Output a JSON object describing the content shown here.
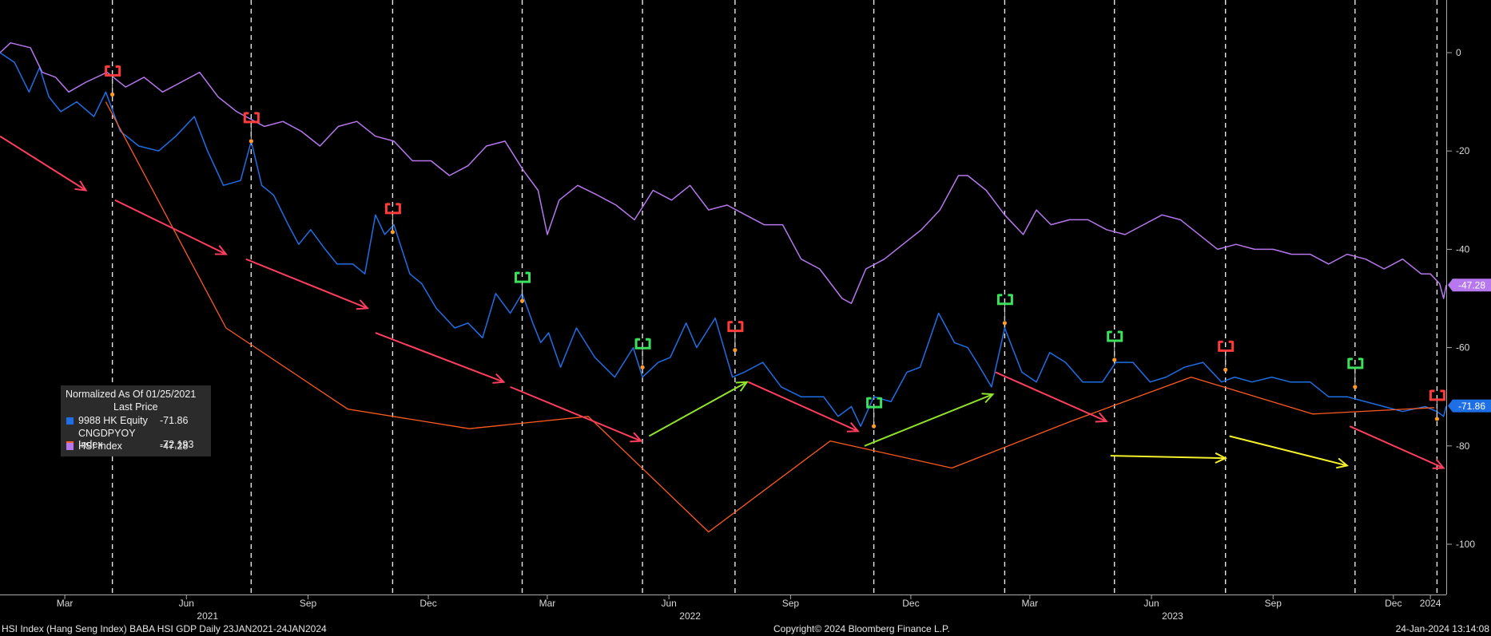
{
  "chart_data": {
    "type": "line",
    "title": "",
    "xlabel": "",
    "ylabel": "",
    "legend_title": "Normalized As Of 01/25/2021",
    "legend_subtitle": "Last Price",
    "x_range": [
      "2021-01-25",
      "2024-01-24"
    ],
    "ylim": [
      -110,
      10
    ],
    "y_ticks": [
      0,
      -20,
      -40,
      -60,
      -80,
      -100
    ],
    "grid": false,
    "legend_position": "left",
    "month_ticks": [
      {
        "label": "Mar",
        "date": "2021-03-15"
      },
      {
        "label": "Jun",
        "date": "2021-06-15"
      },
      {
        "label": "Sep",
        "date": "2021-09-15"
      },
      {
        "label": "Dec",
        "date": "2021-12-15"
      },
      {
        "label": "Mar",
        "date": "2022-03-15"
      },
      {
        "label": "Jun",
        "date": "2022-06-15"
      },
      {
        "label": "Sep",
        "date": "2022-09-15"
      },
      {
        "label": "Dec",
        "date": "2022-12-15"
      },
      {
        "label": "Mar",
        "date": "2023-03-15"
      },
      {
        "label": "Jun",
        "date": "2023-06-15"
      },
      {
        "label": "Sep",
        "date": "2023-09-15"
      },
      {
        "label": "Dec",
        "date": "2023-12-15"
      },
      {
        "label": "2024",
        "date": "2024-01-12"
      }
    ],
    "year_labels": [
      {
        "label": "2021",
        "date": "2021-07-01"
      },
      {
        "label": "2022",
        "date": "2022-07-01"
      },
      {
        "label": "2023",
        "date": "2023-07-01"
      }
    ],
    "event_dates": [
      "2021-04-20",
      "2021-08-03",
      "2021-11-18",
      "2022-02-24",
      "2022-05-26",
      "2022-08-04",
      "2022-11-17",
      "2023-02-24",
      "2023-05-18",
      "2023-08-10",
      "2023-11-16",
      "2024-01-17"
    ],
    "event_markers": [
      {
        "date": "2021-04-20",
        "value": -8.5,
        "color": "red"
      },
      {
        "date": "2021-08-03",
        "value": -18,
        "color": "red"
      },
      {
        "date": "2021-11-18",
        "value": -36.5,
        "color": "red"
      },
      {
        "date": "2022-02-24",
        "value": -50.5,
        "color": "green"
      },
      {
        "date": "2022-05-26",
        "value": -64,
        "color": "green"
      },
      {
        "date": "2022-08-04",
        "value": -60.5,
        "color": "red"
      },
      {
        "date": "2022-11-17",
        "value": -76,
        "color": "green"
      },
      {
        "date": "2023-02-24",
        "value": -55,
        "color": "green"
      },
      {
        "date": "2023-05-18",
        "value": -62.5,
        "color": "green"
      },
      {
        "date": "2023-08-10",
        "value": -64.5,
        "color": "red"
      },
      {
        "date": "2023-11-16",
        "value": -68,
        "color": "green"
      },
      {
        "date": "2024-01-17",
        "value": -74.5,
        "color": "red"
      }
    ],
    "annotation_arrows": [
      {
        "color": "red",
        "from": [
          "2021-01-25",
          -17
        ],
        "to": [
          "2021-03-31",
          -28
        ]
      },
      {
        "color": "red",
        "from": [
          "2021-04-22",
          -30
        ],
        "to": [
          "2021-07-15",
          -41
        ]
      },
      {
        "color": "red",
        "from": [
          "2021-07-30",
          -42
        ],
        "to": [
          "2021-10-30",
          -52
        ]
      },
      {
        "color": "red",
        "from": [
          "2021-11-05",
          -57
        ],
        "to": [
          "2022-02-10",
          -67
        ]
      },
      {
        "color": "red",
        "from": [
          "2022-02-15",
          -68
        ],
        "to": [
          "2022-05-25",
          -79
        ]
      },
      {
        "color": "green",
        "from": [
          "2022-05-31",
          -78
        ],
        "to": [
          "2022-08-13",
          -67
        ]
      },
      {
        "color": "red",
        "from": [
          "2022-08-14",
          -67
        ],
        "to": [
          "2022-11-05",
          -77
        ]
      },
      {
        "color": "green",
        "from": [
          "2022-11-10",
          -80
        ],
        "to": [
          "2023-02-15",
          -69.5
        ]
      },
      {
        "color": "red",
        "from": [
          "2023-02-17",
          -65
        ],
        "to": [
          "2023-05-12",
          -75
        ]
      },
      {
        "color": "yellow",
        "from": [
          "2023-05-15",
          -82
        ],
        "to": [
          "2023-08-10",
          -82.5
        ]
      },
      {
        "color": "yellow",
        "from": [
          "2023-08-13",
          -78
        ],
        "to": [
          "2023-11-10",
          -84
        ]
      },
      {
        "color": "red",
        "from": [
          "2023-11-12",
          -76
        ],
        "to": [
          "2024-01-22",
          -84.5
        ]
      }
    ],
    "series": [
      {
        "name": "9988 HK Equity",
        "legend_value": "-71.86",
        "last_label": "-71.86",
        "color": "#1e6fe6",
        "x": [
          "2021-01-25",
          "2021-02-05",
          "2021-02-16",
          "2021-02-24",
          "2021-03-03",
          "2021-03-12",
          "2021-03-24",
          "2021-04-06",
          "2021-04-15",
          "2021-04-26",
          "2021-05-10",
          "2021-05-25",
          "2021-06-07",
          "2021-06-21",
          "2021-07-01",
          "2021-07-13",
          "2021-07-26",
          "2021-08-03",
          "2021-08-11",
          "2021-08-20",
          "2021-08-31",
          "2021-09-08",
          "2021-09-17",
          "2021-09-28",
          "2021-10-07",
          "2021-10-19",
          "2021-10-28",
          "2021-11-05",
          "2021-11-12",
          "2021-11-19",
          "2021-12-01",
          "2021-12-10",
          "2021-12-21",
          "2022-01-04",
          "2022-01-14",
          "2022-01-25",
          "2022-02-04",
          "2022-02-15",
          "2022-02-24",
          "2022-03-04",
          "2022-03-10",
          "2022-03-16",
          "2022-03-25",
          "2022-04-06",
          "2022-04-20",
          "2022-05-05",
          "2022-05-19",
          "2022-05-26",
          "2022-06-07",
          "2022-06-16",
          "2022-06-28",
          "2022-07-06",
          "2022-07-20",
          "2022-08-02",
          "2022-08-11",
          "2022-08-25",
          "2022-09-08",
          "2022-09-23",
          "2022-10-10",
          "2022-10-21",
          "2022-10-31",
          "2022-11-07",
          "2022-11-17",
          "2022-11-30",
          "2022-12-12",
          "2022-12-22",
          "2023-01-05",
          "2023-01-17",
          "2023-01-27",
          "2023-02-03",
          "2023-02-14",
          "2023-02-24",
          "2023-03-09",
          "2023-03-20",
          "2023-03-30",
          "2023-04-11",
          "2023-04-24",
          "2023-05-09",
          "2023-05-19",
          "2023-06-01",
          "2023-06-14",
          "2023-06-26",
          "2023-07-10",
          "2023-07-24",
          "2023-08-07",
          "2023-08-17",
          "2023-08-30",
          "2023-09-14",
          "2023-09-28",
          "2023-10-13",
          "2023-10-27",
          "2023-11-10",
          "2023-11-24",
          "2023-12-08",
          "2023-12-22",
          "2024-01-08",
          "2024-01-17",
          "2024-01-22",
          "2024-01-24"
        ],
        "values": [
          0,
          -2,
          -8,
          -3,
          -9,
          -12,
          -10,
          -13,
          -8,
          -16,
          -19,
          -20,
          -17,
          -13,
          -20,
          -27,
          -26,
          -18,
          -27,
          -29,
          -35,
          -39,
          -36,
          -40,
          -43,
          -43,
          -45,
          -33,
          -37,
          -35,
          -45,
          -47,
          -52,
          -56,
          -55,
          -58,
          -49,
          -53,
          -49,
          -55,
          -59,
          -57,
          -64,
          -56,
          -62,
          -66,
          -60,
          -66,
          -63,
          -62,
          -55,
          -60,
          -54,
          -66,
          -65,
          -63,
          -68,
          -70,
          -70,
          -74,
          -72,
          -76,
          -70,
          -71,
          -65,
          -64,
          -53,
          -59,
          -60,
          -63,
          -68,
          -56,
          -65,
          -67,
          -61,
          -63,
          -67,
          -67,
          -63,
          -63,
          -67,
          -66,
          -64,
          -63,
          -67,
          -66,
          -67,
          -66,
          -67,
          -67,
          -70,
          -70,
          -71,
          -72,
          -73,
          -72,
          -73,
          -74,
          -71.86
        ]
      },
      {
        "name": "CNGDPYOY Index",
        "legend_value": "-72.193",
        "color": "#ff5a1f",
        "x": [
          "2021-04-15",
          "2021-07-15",
          "2021-10-15",
          "2022-01-15",
          "2022-04-15",
          "2022-07-15",
          "2022-10-15",
          "2023-01-15",
          "2023-04-15",
          "2023-07-15",
          "2023-10-15",
          "2024-01-15"
        ],
        "values": [
          -10,
          -56,
          -72.5,
          -76.5,
          -74,
          -97.5,
          -79,
          -84.5,
          -75,
          -66,
          -73.5,
          -72.2
        ]
      },
      {
        "name": "HSI Index",
        "legend_value": "-47.28",
        "last_label": "-47.28",
        "color": "#b777ee",
        "x": [
          "2021-01-25",
          "2021-02-02",
          "2021-02-17",
          "2021-02-26",
          "2021-03-08",
          "2021-03-18",
          "2021-03-31",
          "2021-04-16",
          "2021-04-30",
          "2021-05-14",
          "2021-05-28",
          "2021-06-11",
          "2021-06-25",
          "2021-07-09",
          "2021-07-23",
          "2021-07-30",
          "2021-08-13",
          "2021-08-27",
          "2021-09-10",
          "2021-09-24",
          "2021-10-08",
          "2021-10-22",
          "2021-11-05",
          "2021-11-19",
          "2021-12-03",
          "2021-12-17",
          "2021-12-31",
          "2022-01-14",
          "2022-01-28",
          "2022-02-11",
          "2022-02-25",
          "2022-03-08",
          "2022-03-15",
          "2022-03-24",
          "2022-04-07",
          "2022-04-22",
          "2022-05-06",
          "2022-05-20",
          "2022-06-03",
          "2022-06-17",
          "2022-07-01",
          "2022-07-15",
          "2022-07-29",
          "2022-08-12",
          "2022-08-26",
          "2022-09-09",
          "2022-09-23",
          "2022-10-07",
          "2022-10-24",
          "2022-10-31",
          "2022-11-11",
          "2022-11-25",
          "2022-12-09",
          "2022-12-23",
          "2023-01-06",
          "2023-01-20",
          "2023-01-27",
          "2023-02-10",
          "2023-02-24",
          "2023-03-10",
          "2023-03-20",
          "2023-03-31",
          "2023-04-14",
          "2023-04-28",
          "2023-05-12",
          "2023-05-26",
          "2023-06-09",
          "2023-06-23",
          "2023-07-07",
          "2023-07-21",
          "2023-08-04",
          "2023-08-18",
          "2023-09-01",
          "2023-09-15",
          "2023-09-29",
          "2023-10-13",
          "2023-10-27",
          "2023-11-10",
          "2023-11-24",
          "2023-12-08",
          "2023-12-22",
          "2024-01-05",
          "2024-01-12",
          "2024-01-19",
          "2024-01-22",
          "2024-01-24"
        ],
        "values": [
          0,
          2,
          1,
          -4,
          -5,
          -8,
          -6,
          -4,
          -7,
          -5,
          -8,
          -6,
          -4,
          -9,
          -12,
          -13,
          -15,
          -14,
          -16,
          -19,
          -15,
          -14,
          -17,
          -18,
          -22,
          -22,
          -25,
          -23,
          -19,
          -18,
          -24,
          -28,
          -37,
          -30,
          -27,
          -29,
          -31,
          -34,
          -28,
          -30,
          -27,
          -32,
          -31,
          -33,
          -35,
          -35,
          -42,
          -44,
          -50,
          -51,
          -44,
          -42,
          -39,
          -36,
          -32,
          -25,
          -25,
          -28,
          -33,
          -37,
          -32,
          -35,
          -34,
          -34,
          -36,
          -37,
          -35,
          -33,
          -34,
          -37,
          -40,
          -39,
          -40,
          -40,
          -41,
          -41,
          -43,
          -41,
          -42,
          -44,
          -42,
          -45,
          -45,
          -47,
          -50,
          -47.28
        ]
      }
    ]
  },
  "footer": {
    "left": "HSI Index (Hang Seng Index) BABA HSI GDP  Daily 23JAN2021-24JAN2024",
    "center": "Copyright© 2024 Bloomberg Finance L.P.",
    "right": "24-Jan-2024 13:14:08"
  }
}
